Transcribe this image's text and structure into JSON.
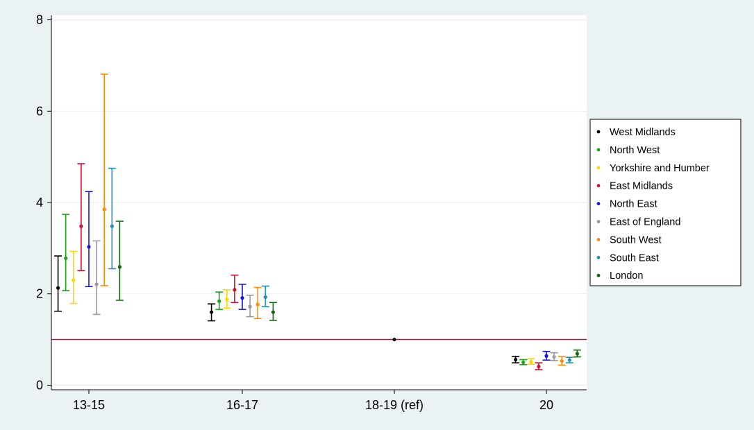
{
  "chart_data": {
    "type": "scatter",
    "title": "",
    "xlabel": "",
    "ylabel": "",
    "categories": [
      "13-15",
      "16-17",
      "18-19 (ref)",
      "20"
    ],
    "y_ticks": [
      0,
      2,
      4,
      6,
      8
    ],
    "ylim": [
      -0.1,
      8.1
    ],
    "grid": true,
    "legend_position": "right",
    "reference_line": {
      "y": 1,
      "color": "#c8102e"
    },
    "colors": {
      "background": "#eaf2f3",
      "plot_background": "#ffffff",
      "gridline": "#e8eef0"
    },
    "reference_point": {
      "category": "18-19 (ref)",
      "y": 1,
      "color": "#000000"
    },
    "series": [
      {
        "name": "West Midlands",
        "color": "#000000",
        "points": [
          {
            "category": "13-15",
            "y": 2.13,
            "lo": 1.62,
            "hi": 2.83
          },
          {
            "category": "16-17",
            "y": 1.6,
            "lo": 1.41,
            "hi": 1.78
          },
          {
            "category": "20",
            "y": 0.56,
            "lo": 0.49,
            "hi": 0.63
          }
        ]
      },
      {
        "name": "North West",
        "color": "#1aa31a",
        "points": [
          {
            "category": "13-15",
            "y": 2.78,
            "lo": 2.07,
            "hi": 3.74
          },
          {
            "category": "16-17",
            "y": 1.84,
            "lo": 1.66,
            "hi": 2.04
          },
          {
            "category": "20",
            "y": 0.5,
            "lo": 0.45,
            "hi": 0.56
          }
        ]
      },
      {
        "name": "Yorkshire and Humber",
        "color": "#ffd700",
        "points": [
          {
            "category": "13-15",
            "y": 2.3,
            "lo": 1.79,
            "hi": 2.93
          },
          {
            "category": "16-17",
            "y": 1.88,
            "lo": 1.69,
            "hi": 2.09
          },
          {
            "category": "20",
            "y": 0.52,
            "lo": 0.46,
            "hi": 0.58
          }
        ]
      },
      {
        "name": "East Midlands",
        "color": "#c8102e",
        "points": [
          {
            "category": "13-15",
            "y": 3.48,
            "lo": 2.51,
            "hi": 4.85
          },
          {
            "category": "16-17",
            "y": 2.09,
            "lo": 1.81,
            "hi": 2.41
          },
          {
            "category": "20",
            "y": 0.41,
            "lo": 0.34,
            "hi": 0.49
          }
        ]
      },
      {
        "name": "North East",
        "color": "#1515d8",
        "points": [
          {
            "category": "13-15",
            "y": 3.03,
            "lo": 2.16,
            "hi": 4.24
          },
          {
            "category": "16-17",
            "y": 1.91,
            "lo": 1.66,
            "hi": 2.21
          },
          {
            "category": "20",
            "y": 0.64,
            "lo": 0.55,
            "hi": 0.74
          }
        ]
      },
      {
        "name": "East of England",
        "color": "#999999",
        "points": [
          {
            "category": "13-15",
            "y": 2.21,
            "lo": 1.55,
            "hi": 3.16
          },
          {
            "category": "16-17",
            "y": 1.72,
            "lo": 1.5,
            "hi": 1.97
          },
          {
            "category": "20",
            "y": 0.62,
            "lo": 0.54,
            "hi": 0.71
          }
        ]
      },
      {
        "name": "South West",
        "color": "#ff8c00",
        "points": [
          {
            "category": "13-15",
            "y": 3.85,
            "lo": 2.18,
            "hi": 6.81
          },
          {
            "category": "16-17",
            "y": 1.77,
            "lo": 1.46,
            "hi": 2.14
          },
          {
            "category": "20",
            "y": 0.53,
            "lo": 0.44,
            "hi": 0.63
          }
        ]
      },
      {
        "name": "South East",
        "color": "#1b8fb5",
        "points": [
          {
            "category": "13-15",
            "y": 3.48,
            "lo": 2.55,
            "hi": 4.75
          },
          {
            "category": "16-17",
            "y": 1.93,
            "lo": 1.72,
            "hi": 2.17
          },
          {
            "category": "20",
            "y": 0.55,
            "lo": 0.49,
            "hi": 0.61
          }
        ]
      },
      {
        "name": "London",
        "color": "#116611",
        "points": [
          {
            "category": "13-15",
            "y": 2.59,
            "lo": 1.86,
            "hi": 3.59
          },
          {
            "category": "16-17",
            "y": 1.6,
            "lo": 1.42,
            "hi": 1.81
          },
          {
            "category": "20",
            "y": 0.69,
            "lo": 0.62,
            "hi": 0.77
          }
        ]
      }
    ]
  }
}
